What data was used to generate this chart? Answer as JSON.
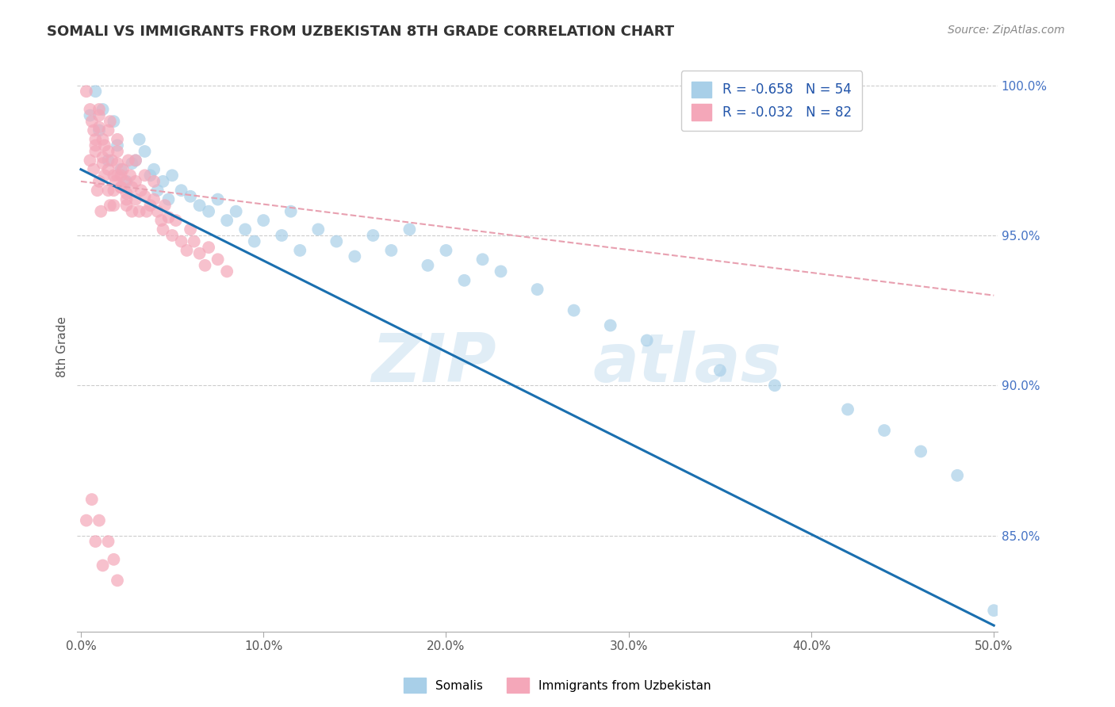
{
  "title": "SOMALI VS IMMIGRANTS FROM UZBEKISTAN 8TH GRADE CORRELATION CHART",
  "source": "Source: ZipAtlas.com",
  "ylabel": "8th Grade",
  "legend_label1": "Somalis",
  "legend_label2": "Immigrants from Uzbekistan",
  "r1": -0.658,
  "n1": 54,
  "r2": -0.032,
  "n2": 82,
  "xlim": [
    -0.002,
    0.502
  ],
  "ylim": [
    0.818,
    1.008
  ],
  "xticks": [
    0.0,
    0.1,
    0.2,
    0.3,
    0.4,
    0.5
  ],
  "yticks": [
    0.85,
    0.9,
    0.95,
    1.0
  ],
  "ytick_labels": [
    "85.0%",
    "90.0%",
    "95.0%",
    "100.0%"
  ],
  "xtick_labels": [
    "0.0%",
    "10.0%",
    "20.0%",
    "30.0%",
    "40.0%",
    "50.0%"
  ],
  "color_blue": "#a8cfe8",
  "color_pink": "#f4a7b9",
  "line_blue": "#1a6faf",
  "line_pink": "#e8a0b0",
  "watermark_zip": "ZIP",
  "watermark_atlas": "atlas",
  "blue_line_x0": 0.0,
  "blue_line_y0": 0.972,
  "blue_line_x1": 0.5,
  "blue_line_y1": 0.82,
  "pink_line_x0": 0.0,
  "pink_line_y0": 0.968,
  "pink_line_x1": 0.5,
  "pink_line_y1": 0.93,
  "blue_scatter_x": [
    0.005,
    0.008,
    0.01,
    0.012,
    0.015,
    0.018,
    0.02,
    0.022,
    0.025,
    0.028,
    0.03,
    0.032,
    0.035,
    0.038,
    0.04,
    0.042,
    0.045,
    0.048,
    0.05,
    0.055,
    0.06,
    0.065,
    0.07,
    0.075,
    0.08,
    0.085,
    0.09,
    0.095,
    0.1,
    0.11,
    0.115,
    0.12,
    0.13,
    0.14,
    0.15,
    0.16,
    0.17,
    0.18,
    0.19,
    0.2,
    0.21,
    0.22,
    0.23,
    0.25,
    0.27,
    0.29,
    0.31,
    0.35,
    0.38,
    0.42,
    0.44,
    0.46,
    0.48,
    0.5
  ],
  "blue_scatter_y": [
    0.99,
    0.998,
    0.985,
    0.992,
    0.975,
    0.988,
    0.98,
    0.972,
    0.968,
    0.974,
    0.975,
    0.982,
    0.978,
    0.97,
    0.972,
    0.965,
    0.968,
    0.962,
    0.97,
    0.965,
    0.963,
    0.96,
    0.958,
    0.962,
    0.955,
    0.958,
    0.952,
    0.948,
    0.955,
    0.95,
    0.958,
    0.945,
    0.952,
    0.948,
    0.943,
    0.95,
    0.945,
    0.952,
    0.94,
    0.945,
    0.935,
    0.942,
    0.938,
    0.932,
    0.925,
    0.92,
    0.915,
    0.905,
    0.9,
    0.892,
    0.885,
    0.878,
    0.87,
    0.825
  ],
  "pink_scatter_x": [
    0.003,
    0.005,
    0.006,
    0.007,
    0.008,
    0.008,
    0.01,
    0.01,
    0.01,
    0.012,
    0.012,
    0.013,
    0.015,
    0.015,
    0.015,
    0.016,
    0.017,
    0.018,
    0.018,
    0.019,
    0.02,
    0.02,
    0.02,
    0.022,
    0.022,
    0.023,
    0.024,
    0.025,
    0.025,
    0.026,
    0.027,
    0.028,
    0.028,
    0.03,
    0.03,
    0.03,
    0.032,
    0.033,
    0.035,
    0.035,
    0.036,
    0.038,
    0.04,
    0.04,
    0.042,
    0.044,
    0.045,
    0.046,
    0.048,
    0.05,
    0.052,
    0.055,
    0.058,
    0.06,
    0.062,
    0.065,
    0.068,
    0.07,
    0.075,
    0.08,
    0.005,
    0.008,
    0.01,
    0.012,
    0.015,
    0.018,
    0.02,
    0.022,
    0.025,
    0.007,
    0.009,
    0.011,
    0.013,
    0.016,
    0.003,
    0.006,
    0.008,
    0.01,
    0.012,
    0.015,
    0.018,
    0.02
  ],
  "pink_scatter_y": [
    0.998,
    0.992,
    0.988,
    0.985,
    0.982,
    0.978,
    0.99,
    0.986,
    0.992,
    0.982,
    0.976,
    0.98,
    0.985,
    0.978,
    0.972,
    0.988,
    0.975,
    0.97,
    0.965,
    0.968,
    0.982,
    0.978,
    0.974,
    0.97,
    0.966,
    0.972,
    0.968,
    0.964,
    0.96,
    0.975,
    0.97,
    0.966,
    0.958,
    0.975,
    0.968,
    0.962,
    0.958,
    0.965,
    0.97,
    0.963,
    0.958,
    0.96,
    0.968,
    0.962,
    0.958,
    0.955,
    0.952,
    0.96,
    0.956,
    0.95,
    0.955,
    0.948,
    0.945,
    0.952,
    0.948,
    0.944,
    0.94,
    0.946,
    0.942,
    0.938,
    0.975,
    0.98,
    0.968,
    0.974,
    0.965,
    0.96,
    0.97,
    0.966,
    0.962,
    0.972,
    0.965,
    0.958,
    0.97,
    0.96,
    0.855,
    0.862,
    0.848,
    0.855,
    0.84,
    0.848,
    0.842,
    0.835
  ]
}
